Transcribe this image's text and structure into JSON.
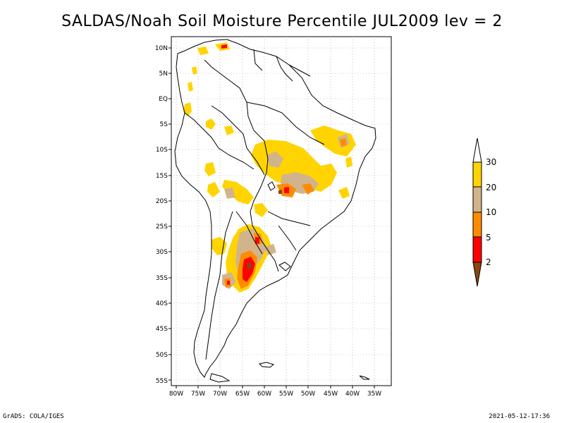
{
  "title": "SALDAS/Noah Soil Moisture Percentile JUL2009 lev = 2",
  "footer_left": "GrADS: COLA/IGES",
  "footer_right": "2021-05-12-17:36",
  "map": {
    "lat_labels": [
      "10N",
      "5N",
      "EQ",
      "5S",
      "10S",
      "15S",
      "20S",
      "25S",
      "30S",
      "35S",
      "40S",
      "45S",
      "50S",
      "55S"
    ],
    "lon_labels": [
      "80W",
      "75W",
      "70W",
      "65W",
      "60W",
      "55W",
      "50W",
      "45W",
      "40W",
      "35W"
    ]
  },
  "colorbar": {
    "levels": [
      "30",
      "20",
      "10",
      "5",
      "2"
    ],
    "colors": {
      "above30": "#ffffff",
      "c20_30": "#ffd400",
      "c10_20": "#d2b48c",
      "c5_10": "#ff8c00",
      "c2_5": "#ff0000",
      "below2": "#8b4513"
    }
  }
}
